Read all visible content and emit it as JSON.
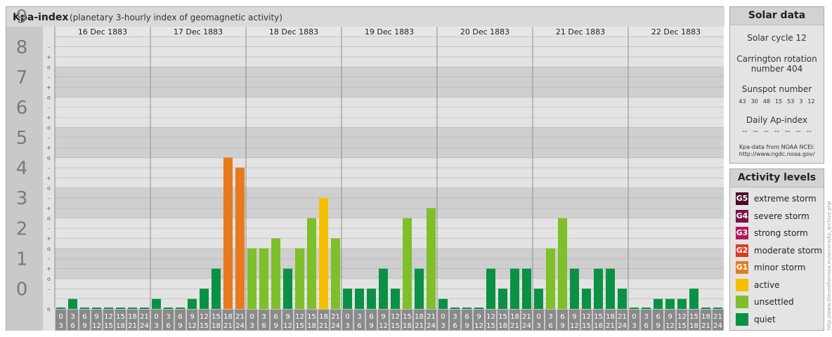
{
  "header": {
    "title": "Kpa-index",
    "subtitle": "(planetary 3-hourly index of geomagnetic activity)"
  },
  "chart_data": {
    "type": "bar",
    "days": [
      "16 Dec 1883",
      "17 Dec 1883",
      "18 Dec 1883",
      "19 Dec 1883",
      "20 Dec 1883",
      "21 Dec 1883",
      "22 Dec 1883"
    ],
    "interval_starts": [
      "0",
      "3",
      "6",
      "9",
      "12",
      "15",
      "18",
      "21"
    ],
    "interval_ends": [
      "3",
      "6",
      "9",
      "12",
      "15",
      "18",
      "21",
      "24"
    ],
    "ylim": [
      0,
      9.33
    ],
    "y_ticks": [
      "0",
      "1",
      "2",
      "3",
      "4",
      "5",
      "6",
      "7",
      "8",
      "9"
    ],
    "thirds_labels": [
      "+",
      "o",
      "-"
    ],
    "values": [
      0,
      0.33,
      0,
      0,
      0,
      0,
      0,
      0,
      0.33,
      0,
      0,
      0.33,
      0.67,
      1.33,
      5,
      4.67,
      2,
      2,
      2.33,
      1.33,
      2,
      3,
      3.67,
      2.33,
      0.67,
      0.67,
      0.67,
      1.33,
      0.67,
      3,
      1.33,
      3.33,
      0.33,
      0,
      0,
      0,
      1.33,
      0.67,
      1.33,
      1.33,
      0.67,
      2,
      3,
      1.33,
      0.67,
      1.33,
      1.33,
      0.67,
      0,
      0,
      0.33,
      0.33,
      0.33,
      0.67,
      0,
      0
    ],
    "colors": {
      "quiet": "#0a9146",
      "unsettled": "#7ebf2a",
      "active": "#f5c000",
      "minor_storm": "#e87a1e",
      "moderate_storm": "#d93c20",
      "strong_storm": "#b5155d",
      "severe_storm": "#7e1048",
      "extreme_storm": "#4d0a2a"
    }
  },
  "solar_data": {
    "title": "Solar data",
    "solar_cycle": "Solar cycle 12",
    "carrington_line1": "Carrington rotation",
    "carrington_line2": "number 404",
    "sunspot_label": "Sunspot number",
    "sunspot_values": [
      "43",
      "30",
      "48",
      "15",
      "53",
      "3",
      "12"
    ],
    "ap_label": "Daily Ap-index",
    "ap_values": [
      "--",
      "--",
      "--",
      "--",
      "--",
      "--",
      "--"
    ],
    "source_line1": "Kpa-data from NOAA NCEI:",
    "source_line2": "http://www.ngdc.noaa.gov/"
  },
  "activity_levels": {
    "title": "Activity levels",
    "items": [
      {
        "code": "G5",
        "label": "extreme storm",
        "color": "#4d0a2a"
      },
      {
        "code": "G4",
        "label": "severe storm",
        "color": "#7e1048"
      },
      {
        "code": "G3",
        "label": "strong storm",
        "color": "#b5155d"
      },
      {
        "code": "G2",
        "label": "moderate storm",
        "color": "#d93c20"
      },
      {
        "code": "G1",
        "label": "minor storm",
        "color": "#e87a1e"
      },
      {
        "code": "",
        "label": "active",
        "color": "#f5c000"
      },
      {
        "code": "",
        "label": "unsettled",
        "color": "#7ebf2a"
      },
      {
        "code": "",
        "label": "quiet",
        "color": "#0a9146"
      }
    ]
  },
  "watermark": "http://www.theusafiamosa.eu/aurora/kp_archive.php"
}
